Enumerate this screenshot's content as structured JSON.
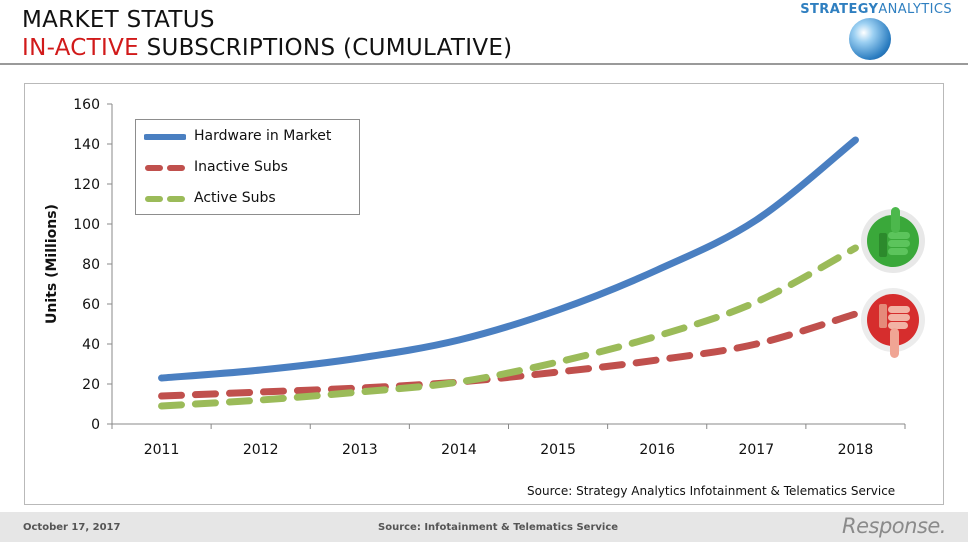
{
  "header": {
    "title_line1": "MARKET STATUS",
    "title_line2_highlight": "IN-ACTIVE",
    "title_line2_rest": " SUBSCRIPTIONS (CUMULATIVE)",
    "brand_bold": "STRATEGY",
    "brand_thin": "ANALYTICS",
    "brand_color": "#2f7fc0",
    "highlight_color": "#d11a1a"
  },
  "chart_data": {
    "type": "line",
    "categories": [
      "2011",
      "2012",
      "2013",
      "2014",
      "2015",
      "2016",
      "2017",
      "2018"
    ],
    "ylabel": "Units (Millions)",
    "xlabel": "",
    "ylim": [
      0,
      160
    ],
    "yticks": [
      "0",
      "20",
      "40",
      "60",
      "80",
      "100",
      "120",
      "140",
      "160"
    ],
    "grid": false,
    "legend_position": "top-left",
    "series": [
      {
        "name": "Hardware in Market",
        "values": [
          23,
          27,
          33,
          42,
          57,
          77,
          102,
          142
        ],
        "color": "#4a7fc1",
        "style": "solid"
      },
      {
        "name": "Inactive Subs",
        "values": [
          14,
          16,
          18,
          21,
          26,
          32,
          40,
          55
        ],
        "color": "#c0504d",
        "style": "dashed"
      },
      {
        "name": "Active Subs",
        "values": [
          9,
          12,
          16,
          21,
          31,
          44,
          61,
          88
        ],
        "color": "#9bbb59",
        "style": "dashed"
      }
    ],
    "annotations": [
      "thumbs-up-icon",
      "thumbs-down-icon"
    ]
  },
  "source_note": "Source: Strategy Analytics Infotainment & Telematics Service",
  "footer": {
    "date": "October 17, 2017",
    "source": "Source: Infotainment & Telematics Service",
    "logo": "Response."
  }
}
